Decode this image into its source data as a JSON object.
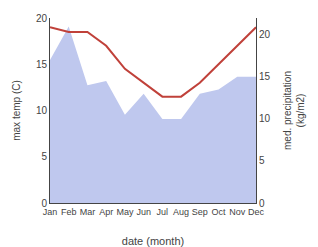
{
  "chart_data": {
    "type": "line",
    "categories": [
      "Jan",
      "Feb",
      "Mar",
      "Apr",
      "May",
      "Jun",
      "Jul",
      "Aug",
      "Sep",
      "Oct",
      "Nov",
      "Dec"
    ],
    "xlabel": "date (month)",
    "ylabel": "max temp (C)",
    "y2label": "med. precipitation\n(kg/m2)",
    "series": [
      {
        "type": "area",
        "axis": "y2",
        "color": "#bfc8ee",
        "values": [
          17.0,
          21.0,
          14.0,
          14.5,
          10.5,
          13.0,
          10.0,
          10.0,
          13.0,
          13.5,
          15.0,
          15.0
        ]
      },
      {
        "type": "line",
        "color": "#c0413a",
        "values": [
          19.0,
          18.5,
          18.5,
          17.0,
          14.5,
          13.0,
          11.5,
          11.5,
          13.0,
          15.0,
          17.0,
          19.0
        ]
      }
    ],
    "ylim": [
      0,
      20
    ],
    "yticks": [
      0,
      5,
      10,
      15,
      20
    ],
    "y2lim": [
      0,
      22
    ],
    "y2ticks": [
      0,
      5,
      10,
      15,
      20
    ],
    "grid": false
  }
}
